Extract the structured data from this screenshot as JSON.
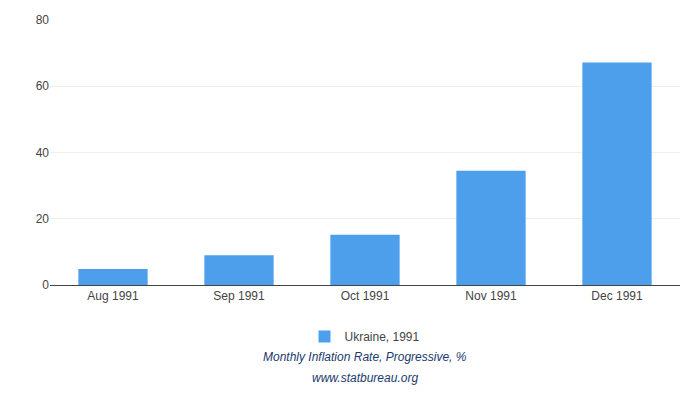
{
  "chart_data": {
    "type": "bar",
    "categories": [
      "Aug 1991",
      "Sep 1991",
      "Oct 1991",
      "Nov 1991",
      "Dec 1991"
    ],
    "series": [
      {
        "name": "Ukraine, 1991",
        "color": "#4d9fec",
        "values": [
          4.8,
          9.0,
          15.2,
          34.5,
          67.2
        ]
      }
    ],
    "ylim": [
      0,
      80
    ],
    "yticks": [
      0,
      20,
      40,
      60,
      80
    ],
    "grid": true,
    "legend": "bottom",
    "subtitle": "Monthly Inflation Rate, Progressive, %",
    "annotations": [
      "www.statbureau.org"
    ]
  }
}
